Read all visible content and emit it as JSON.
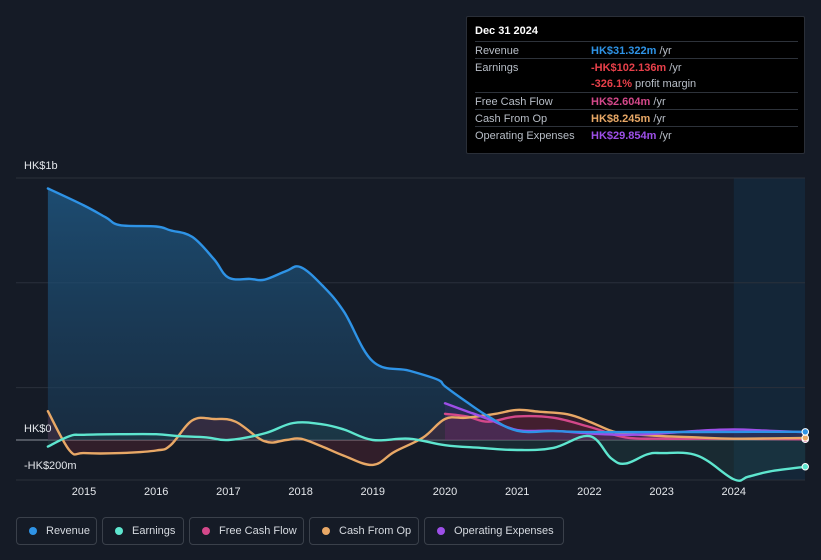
{
  "tooltip": {
    "date": "Dec 31 2024",
    "rows": [
      {
        "label": "Revenue",
        "value": "HK$31.322m",
        "unit": " /yr",
        "color": "#2e93e6"
      },
      {
        "label": "Earnings",
        "value": "-HK$102.136m",
        "unit": " /yr",
        "color": "#e8404a"
      },
      {
        "label": "",
        "value": "-326.1%",
        "unit": " profit margin",
        "color": "#e8404a"
      },
      {
        "label": "Free Cash Flow",
        "value": "HK$2.604m",
        "unit": " /yr",
        "color": "#d4488a"
      },
      {
        "label": "Cash From Op",
        "value": "HK$8.245m",
        "unit": " /yr",
        "color": "#e8a866"
      },
      {
        "label": "Operating Expenses",
        "value": "HK$29.854m",
        "unit": " /yr",
        "color": "#9d4fe8"
      }
    ]
  },
  "legend": [
    {
      "label": "Revenue",
      "color": "#2e93e6"
    },
    {
      "label": "Earnings",
      "color": "#5ee6cf"
    },
    {
      "label": "Free Cash Flow",
      "color": "#d4488a"
    },
    {
      "label": "Cash From Op",
      "color": "#e8a866"
    },
    {
      "label": "Operating Expenses",
      "color": "#9d4fe8"
    }
  ],
  "chart_data": {
    "type": "area",
    "ylim": [
      -200,
      1000
    ],
    "y_tick_labels": [
      "HK$1b",
      "HK$0",
      "-HK$200m"
    ],
    "x_tick_labels": [
      "2015",
      "2016",
      "2017",
      "2018",
      "2019",
      "2020",
      "2021",
      "2022",
      "2023",
      "2024"
    ],
    "units": "HK$ millions",
    "series": [
      {
        "name": "Revenue",
        "color": "#2e93e6",
        "points": [
          [
            2014.5,
            960
          ],
          [
            2015.0,
            895
          ],
          [
            2015.3,
            850
          ],
          [
            2015.5,
            820
          ],
          [
            2016.0,
            815
          ],
          [
            2016.2,
            800
          ],
          [
            2016.5,
            775
          ],
          [
            2016.8,
            690
          ],
          [
            2017.0,
            620
          ],
          [
            2017.3,
            615
          ],
          [
            2017.5,
            612
          ],
          [
            2017.8,
            645
          ],
          [
            2018.0,
            660
          ],
          [
            2018.3,
            590
          ],
          [
            2018.6,
            490
          ],
          [
            2019.0,
            300
          ],
          [
            2019.5,
            265
          ],
          [
            2019.9,
            230
          ],
          [
            2020.0,
            205
          ],
          [
            2020.3,
            145
          ],
          [
            2020.6,
            90
          ],
          [
            2021.0,
            35
          ],
          [
            2021.5,
            34
          ],
          [
            2022.0,
            30
          ],
          [
            2023.0,
            30
          ],
          [
            2024.0,
            31
          ],
          [
            2024.99,
            31.3
          ]
        ]
      },
      {
        "name": "Earnings",
        "color": "#5ee6cf",
        "points": [
          [
            2014.5,
            -25
          ],
          [
            2014.8,
            15
          ],
          [
            2015.0,
            20
          ],
          [
            2015.5,
            22
          ],
          [
            2016.0,
            22
          ],
          [
            2016.3,
            15
          ],
          [
            2016.7,
            10
          ],
          [
            2017.0,
            0
          ],
          [
            2017.5,
            25
          ],
          [
            2017.9,
            65
          ],
          [
            2018.3,
            60
          ],
          [
            2018.6,
            40
          ],
          [
            2019.0,
            0
          ],
          [
            2019.5,
            5
          ],
          [
            2020.0,
            -20
          ],
          [
            2020.5,
            -30
          ],
          [
            2021.0,
            -38
          ],
          [
            2021.5,
            -30
          ],
          [
            2022.0,
            15
          ],
          [
            2022.3,
            -70
          ],
          [
            2022.5,
            -90
          ],
          [
            2022.8,
            -55
          ],
          [
            2023.0,
            -50
          ],
          [
            2023.5,
            -60
          ],
          [
            2024.0,
            -150
          ],
          [
            2024.2,
            -140
          ],
          [
            2024.5,
            -120
          ],
          [
            2024.99,
            -102.1
          ]
        ]
      },
      {
        "name": "Free Cash Flow",
        "color": "#d4488a",
        "points": [
          [
            2020.0,
            100
          ],
          [
            2020.3,
            90
          ],
          [
            2020.6,
            70
          ],
          [
            2021.0,
            90
          ],
          [
            2021.5,
            85
          ],
          [
            2022.0,
            50
          ],
          [
            2022.5,
            10
          ],
          [
            2023.0,
            5
          ],
          [
            2023.5,
            5
          ],
          [
            2024.0,
            5
          ],
          [
            2024.99,
            2.6
          ]
        ]
      },
      {
        "name": "Cash From Op",
        "color": "#e8a866",
        "points": [
          [
            2014.5,
            110
          ],
          [
            2014.8,
            -40
          ],
          [
            2015.0,
            -50
          ],
          [
            2015.5,
            -50
          ],
          [
            2016.0,
            -40
          ],
          [
            2016.2,
            -20
          ],
          [
            2016.5,
            75
          ],
          [
            2016.8,
            80
          ],
          [
            2017.1,
            70
          ],
          [
            2017.5,
            -5
          ],
          [
            2017.8,
            0
          ],
          [
            2018.0,
            5
          ],
          [
            2018.3,
            -25
          ],
          [
            2018.6,
            -60
          ],
          [
            2019.0,
            -95
          ],
          [
            2019.3,
            -45
          ],
          [
            2019.7,
            10
          ],
          [
            2020.0,
            80
          ],
          [
            2020.3,
            85
          ],
          [
            2020.7,
            100
          ],
          [
            2021.0,
            115
          ],
          [
            2021.3,
            108
          ],
          [
            2021.7,
            98
          ],
          [
            2022.0,
            70
          ],
          [
            2022.3,
            35
          ],
          [
            2022.5,
            25
          ],
          [
            2023.0,
            15
          ],
          [
            2023.5,
            10
          ],
          [
            2024.0,
            5
          ],
          [
            2024.99,
            8.2
          ]
        ]
      },
      {
        "name": "Operating Expenses",
        "color": "#9d4fe8",
        "points": [
          [
            2020.0,
            140
          ],
          [
            2020.3,
            110
          ],
          [
            2020.6,
            80
          ],
          [
            2021.0,
            38
          ],
          [
            2021.5,
            35
          ],
          [
            2022.0,
            25
          ],
          [
            2022.5,
            20
          ],
          [
            2023.0,
            25
          ],
          [
            2023.5,
            35
          ],
          [
            2024.0,
            40
          ],
          [
            2024.5,
            35
          ],
          [
            2024.99,
            29.9
          ]
        ]
      }
    ]
  }
}
